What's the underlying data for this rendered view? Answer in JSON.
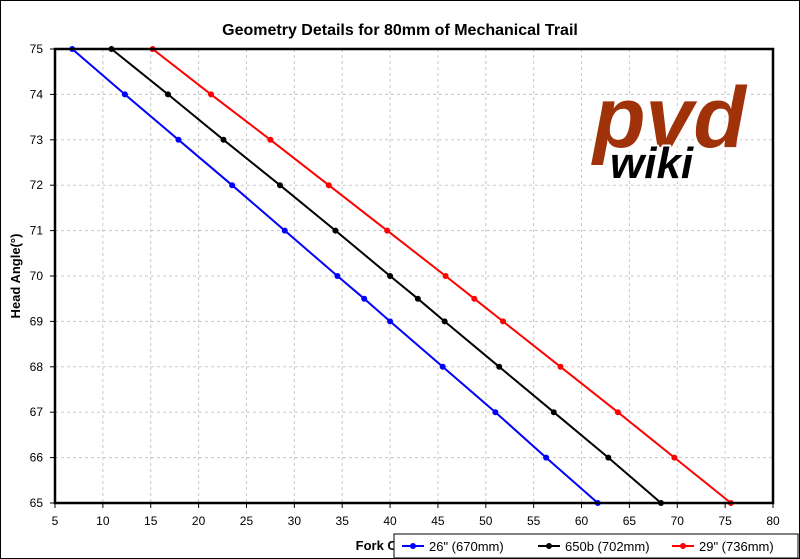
{
  "chart_data": {
    "type": "line",
    "title": "Geometry Details for 80mm of Mechanical Trail",
    "xlabel": "Fork Offset (mm)",
    "ylabel": "Head Angle(°)",
    "xlim": [
      5,
      80
    ],
    "ylim": [
      65,
      75
    ],
    "xticks": [
      5,
      10,
      15,
      20,
      25,
      30,
      35,
      40,
      45,
      50,
      55,
      60,
      65,
      70,
      75,
      80
    ],
    "yticks": [
      65,
      66,
      67,
      68,
      69,
      70,
      71,
      72,
      73,
      74,
      75
    ],
    "grid": true,
    "legend_position": "bottom-right",
    "series": [
      {
        "name": "26\" (670mm)",
        "color": "#0000ff",
        "points": [
          {
            "x": 6.8,
            "y": 75
          },
          {
            "x": 12.3,
            "y": 74
          },
          {
            "x": 17.9,
            "y": 73
          },
          {
            "x": 23.5,
            "y": 72
          },
          {
            "x": 29.0,
            "y": 71
          },
          {
            "x": 34.5,
            "y": 70
          },
          {
            "x": 37.3,
            "y": 69.5
          },
          {
            "x": 40.0,
            "y": 69
          },
          {
            "x": 45.5,
            "y": 68
          },
          {
            "x": 51.0,
            "y": 67
          },
          {
            "x": 56.3,
            "y": 66
          },
          {
            "x": 61.7,
            "y": 65
          }
        ]
      },
      {
        "name": "650b (702mm)",
        "color": "#000000",
        "points": [
          {
            "x": 10.9,
            "y": 75
          },
          {
            "x": 16.8,
            "y": 74
          },
          {
            "x": 22.6,
            "y": 73
          },
          {
            "x": 28.5,
            "y": 72
          },
          {
            "x": 34.3,
            "y": 71
          },
          {
            "x": 40.0,
            "y": 70
          },
          {
            "x": 42.9,
            "y": 69.5
          },
          {
            "x": 45.7,
            "y": 69
          },
          {
            "x": 51.4,
            "y": 68
          },
          {
            "x": 57.1,
            "y": 67
          },
          {
            "x": 62.8,
            "y": 66
          },
          {
            "x": 68.3,
            "y": 65
          }
        ]
      },
      {
        "name": "29\" (736mm)",
        "color": "#ff0000",
        "points": [
          {
            "x": 15.2,
            "y": 75
          },
          {
            "x": 21.3,
            "y": 74
          },
          {
            "x": 27.5,
            "y": 73
          },
          {
            "x": 33.6,
            "y": 72
          },
          {
            "x": 39.7,
            "y": 71
          },
          {
            "x": 45.8,
            "y": 70
          },
          {
            "x": 48.8,
            "y": 69.5
          },
          {
            "x": 51.8,
            "y": 69
          },
          {
            "x": 57.8,
            "y": 68
          },
          {
            "x": 63.8,
            "y": 67
          },
          {
            "x": 69.7,
            "y": 66
          },
          {
            "x": 75.6,
            "y": 65
          }
        ]
      }
    ]
  },
  "logo": {
    "text_top": "pvd",
    "text_bottom": "wiki",
    "colors": {
      "fill": "#a0320a",
      "outline": "#ffffff",
      "wiki": "#000000"
    }
  },
  "colors": {
    "grid": "#c8c8c8",
    "axis": "#000000"
  }
}
